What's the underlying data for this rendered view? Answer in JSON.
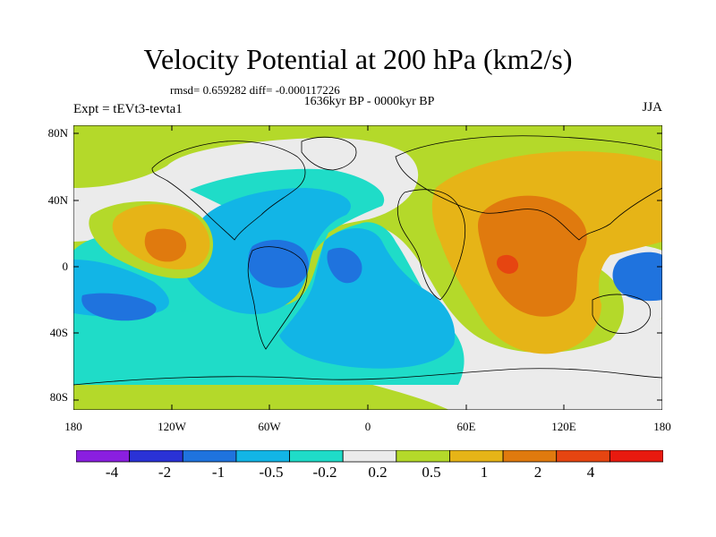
{
  "header": {
    "title": "Velocity Potential at 200 hPa (km2/s)",
    "stats": "rmsd= 0.659282 diff= -0.000117226",
    "period": "1636kyr BP - 0000kyr BP",
    "experiment": "Expt = tEVt3-tevta1",
    "season": "JJA"
  },
  "axes": {
    "lat_labels": [
      "80N",
      "40N",
      "0",
      "40S",
      "80S"
    ],
    "lon_labels": [
      "180",
      "120W",
      "60W",
      "0",
      "60E",
      "120E",
      "180"
    ]
  },
  "colorbar": {
    "colors": [
      "#8a1fe0",
      "#2a32d6",
      "#1f73de",
      "#12b5e6",
      "#1fdcc8",
      "#ebebeb",
      "#b4d92a",
      "#e6b417",
      "#e07a0e",
      "#e64511",
      "#e81a0f"
    ],
    "labels": [
      "-4",
      "-2",
      "-1",
      "-0.5",
      "-0.2",
      "0.2",
      "0.5",
      "1",
      "2",
      "4"
    ]
  }
}
